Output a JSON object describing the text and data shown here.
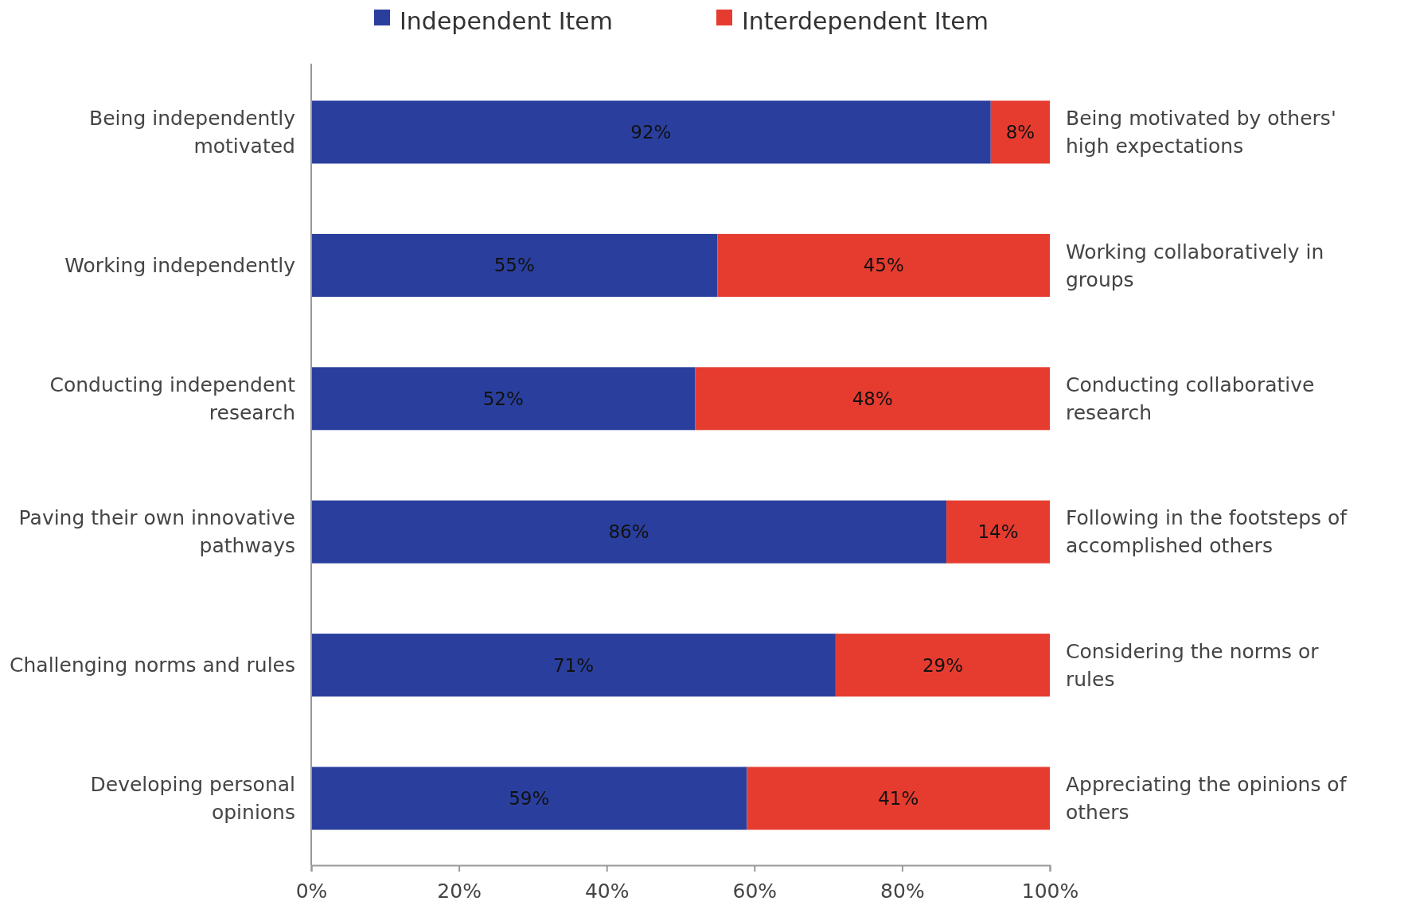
{
  "chart_data": {
    "type": "bar",
    "orientation": "horizontal",
    "stacked": true,
    "categories": [
      "Being independently motivated",
      "Working independently",
      "Conducting independent research",
      "Paving their own innovative pathways",
      "Challenging norms and rules",
      "Developing personal opinions"
    ],
    "series": [
      {
        "name": "Independent Item",
        "color": "#2a3f9d",
        "values": [
          92,
          55,
          52,
          86,
          71,
          59
        ],
        "value_labels": [
          "92%",
          "55%",
          "52%",
          "86%",
          "71%",
          "59%"
        ]
      },
      {
        "name": "Interdependent Item",
        "color": "#e63c30",
        "values": [
          8,
          45,
          48,
          14,
          29,
          41
        ],
        "value_labels": [
          "8%",
          "45%",
          "48%",
          "14%",
          "29%",
          "41%"
        ]
      }
    ],
    "xlim": [
      0,
      100
    ],
    "xticks": [
      {
        "value": 0,
        "label": "0%"
      },
      {
        "value": 20,
        "label": "20%"
      },
      {
        "value": 40,
        "label": "40%"
      },
      {
        "value": 60,
        "label": "60%"
      },
      {
        "value": 80,
        "label": "80%"
      },
      {
        "value": 100,
        "label": "100%"
      }
    ],
    "legend": "top",
    "grid": false,
    "annotations": [
      "Being motivated by others' high expectations",
      "Working collaboratively in groups",
      "Conducting collaborative research",
      "Following in the footsteps of accomplished others",
      "Considering the norms or rules",
      "Appreciating the opinions of others"
    ]
  }
}
